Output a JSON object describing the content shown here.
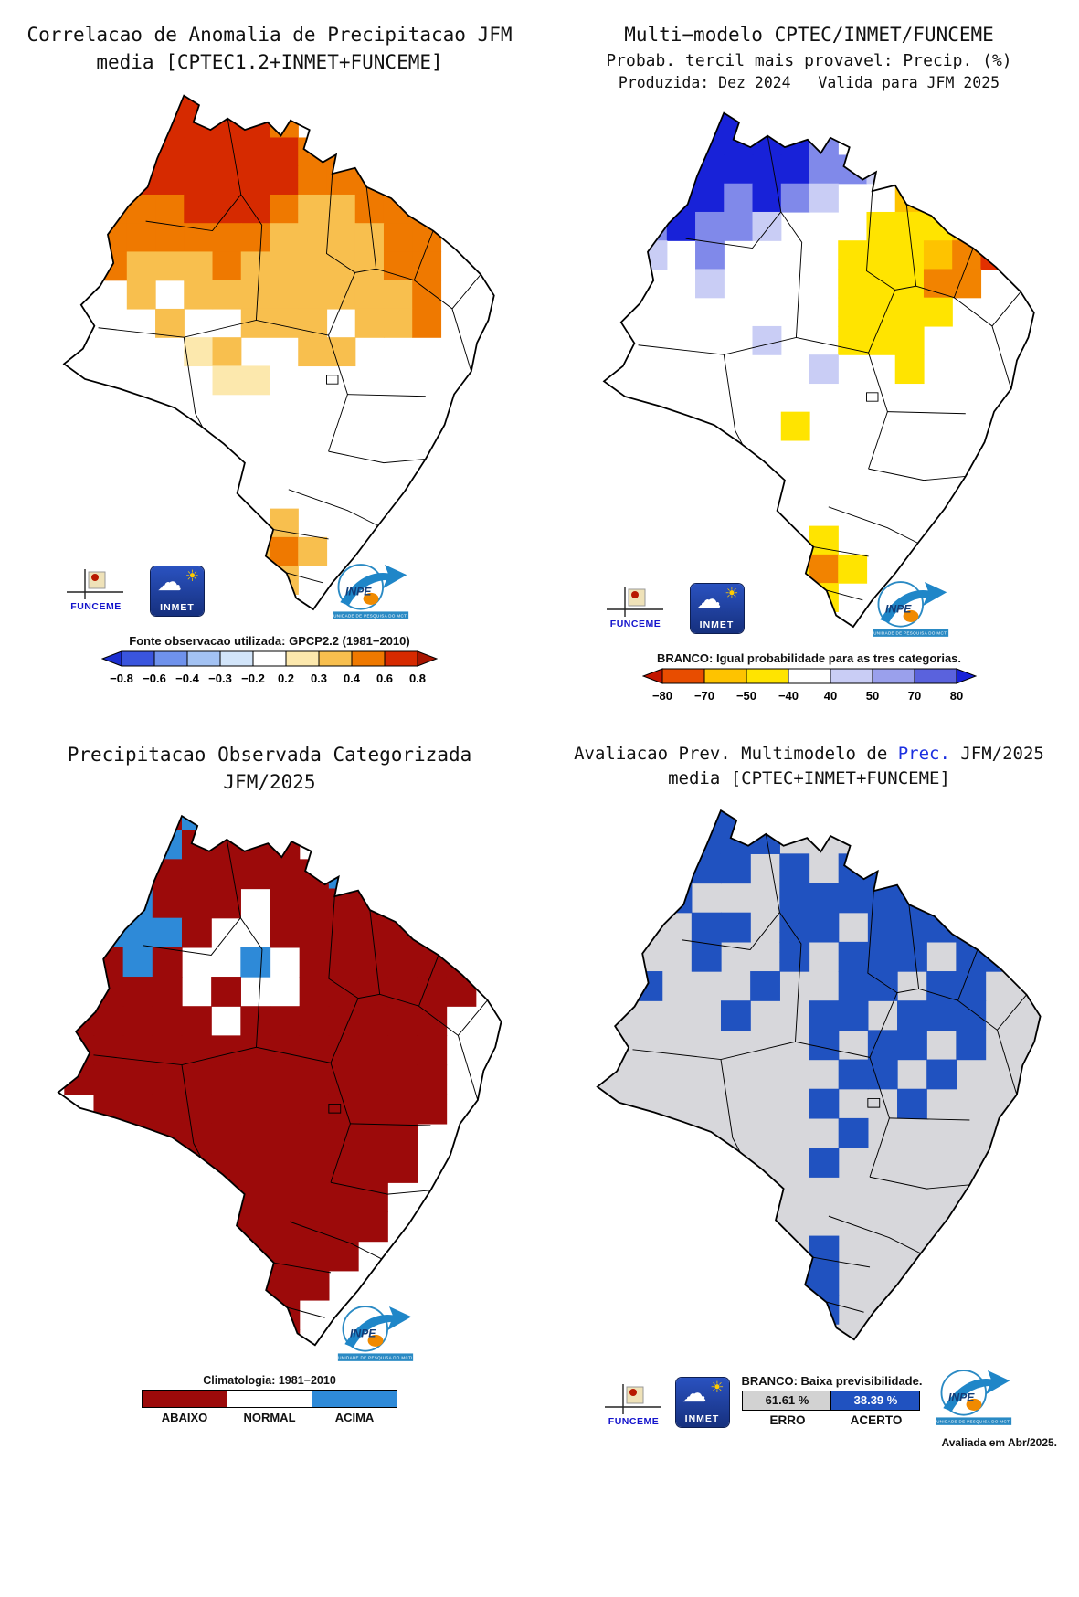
{
  "logos": {
    "funceme": "FUNCEME",
    "inmet": "INMET",
    "inpe": "INPE",
    "inpe_banner": "UNIDADE DE PESQUISA DO MCTI"
  },
  "panels": {
    "correlation": {
      "title1": "Correlacao de Anomalia de Precipitacao JFM",
      "title2": "media [CPTEC1.2+INMET+FUNCEME]",
      "caption": "Fonte observacao utilizada: GPCP2.2 (1981−2010)"
    },
    "forecast": {
      "title1": "Multi−modelo CPTEC/INMET/FUNCEME",
      "title2": "Probab. tercil mais provavel: Precip. (%)",
      "title3": "Produzida: Dez 2024   Valida para JFM 2025",
      "caption": "BRANCO: Igual probabilidade para as tres categorias."
    },
    "observed": {
      "title1": "Precipitacao Observada Categorizada",
      "title2": "JFM/2025",
      "climatology": "Climatologia: 1981−2010"
    },
    "evaluation": {
      "title1_pre": "Avaliacao Prev. Multimodelo de ",
      "title1_highlight": "Prec.",
      "title1_post": " JFM/2025",
      "title2": "media [CPTEC+INMET+FUNCEME]",
      "highlight_color": "#1b2fe0",
      "caption": "BRANCO: Baixa previsibilidade.",
      "erro_value": "61.61 %",
      "acerto_value": "38.39 %",
      "erro_label": "ERRO",
      "acerto_label": "ACERTO",
      "footnote": "Avaliada em Abr/2025."
    }
  },
  "maps": {
    "correlation": {
      "base_fill": "#ffffff",
      "palette": {
        "R": "#d62a00",
        "o": "#ef7900",
        "y": "#f8bf4e",
        "p": "#fce8ad"
      },
      "grid": [
        "....RRo.........",
        "..oRRRRRo.......",
        ".oRRRRRRRooo....",
        "ooRRRRRRRoooo...",
        "oooooRRRoyyooo..",
        ".oooooooyyyyoo..",
        "..oyyyoyyyyyoo..",
        "...y.yyyyyyyyo..",
        "....y..yyy.yyo..",
        ".....py..yy.....",
        "......pp........",
        "................",
        "................",
        "................",
        "................",
        "........y.......",
        ".......yoy......",
        "......yyy.......",
        "................"
      ],
      "colorbar": {
        "labels": [
          "−0.8",
          "−0.6",
          "−0.4",
          "−0.3",
          "−0.2",
          "0.2",
          "0.3",
          "0.4",
          "0.6",
          "0.8"
        ],
        "colors": [
          "#3a55dd",
          "#6f92ec",
          "#a3c2f3",
          "#d2e5fa",
          "#ffffff",
          "#fce8ad",
          "#f8bf4e",
          "#ef7900",
          "#d62a00"
        ],
        "arrow_left": "#1c2fd0",
        "arrow_right": "#a81400"
      }
    },
    "forecast": {
      "base_fill": "#ffffff",
      "palette": {
        "B": "#1822d8",
        "b": "#8089ea",
        "l": "#c9cdf5",
        "Y": "#ffe400",
        "g": "#fec300",
        "O": "#f28300",
        "r": "#e33000"
      },
      "grid": [
        "....BBB.........",
        "..bBBBBBb.......",
        ".lBBBBBBbbl.....",
        "lbBBBbBbl..gY...",
        ".bbBbbl...YYYgO.",
        "..l.b....YYYgOr.",
        "....l....YYYOO..",
        ".........YYYY...",
        "......l..YYY....",
        "........l..Y....",
        "................",
        ".......Y........",
        "................",
        "................",
        "................",
        "........Y.......",
        ".......YOY......",
        "......YYY.......",
        "................"
      ],
      "colorbar": {
        "labels": [
          "−80",
          "−70",
          "−50",
          "−40",
          "40",
          "50",
          "70",
          "80"
        ],
        "colors": [
          "#e84d00",
          "#fec300",
          "#ffe400",
          "#ffffff",
          "#c9cdf5",
          "#9aa0ec",
          "#5a62dd"
        ],
        "arrow_left": "#c21500",
        "arrow_right": "#1822d8"
      }
    },
    "observed": {
      "base_fill": "#ffffff",
      "palette": {
        "D": "#9c0a0a",
        "A": "#2e8ad8"
      },
      "grid": [
        "....DAD.........",
        "..DAADDDD.......",
        ".DADDDDDDDA.....",
        "DDAADDD.DDDDD...",
        ".DAAAD..DDDDDDD.",
        "..DAD..A.DDDDDD.",
        "..DDD.D..DDDDDD.",
        "DDDDDD.DDDDDDD..",
        ".DDDDDDDDDDDDD..",
        ".DDDDDDDDDDDDD..",
        "..DDDDDDDDDDDD..",
        "...DDDDDDDDDD...",
        "...DDDDDDDDDD...",
        "....DDDDDDDD....",
        "....DDDDDDDD....",
        ".....DDDDDD.....",
        "......DDDD......",
        "......DDD.......",
        ".......DD......."
      ],
      "legend": {
        "items": [
          {
            "label": "ABAIXO",
            "color": "#9c0a0a"
          },
          {
            "label": "NORMAL",
            "color": "#ffffff"
          },
          {
            "label": "ACIMA",
            "color": "#2e8ad8"
          }
        ]
      }
    },
    "evaluation": {
      "base_fill": "#d7d7db",
      "palette": {
        "C": "#2052c0"
      },
      "grid": [
        "....CC..........",
        "..C.CCC.........",
        ".C..CC.C.CC.....",
        "..CC...CCCCC....",
        ".C..CC.CC.CCCC..",
        "....C..C.CCC.CC.",
        "..C...C..CC.CC..",
        ".....C..CC.CCC..",
        "........C.CC.C..",
        ".........CC.C...",
        "........C..C....",
        ".........C......",
        "........C.......",
        "................",
        "................",
        "........C.......",
        ".......CC.......",
        "......CCC.......",
        ".......C........"
      ],
      "legend": {
        "erro_color": "#d2d2d2",
        "acerto_color": "#2052c0"
      }
    }
  }
}
